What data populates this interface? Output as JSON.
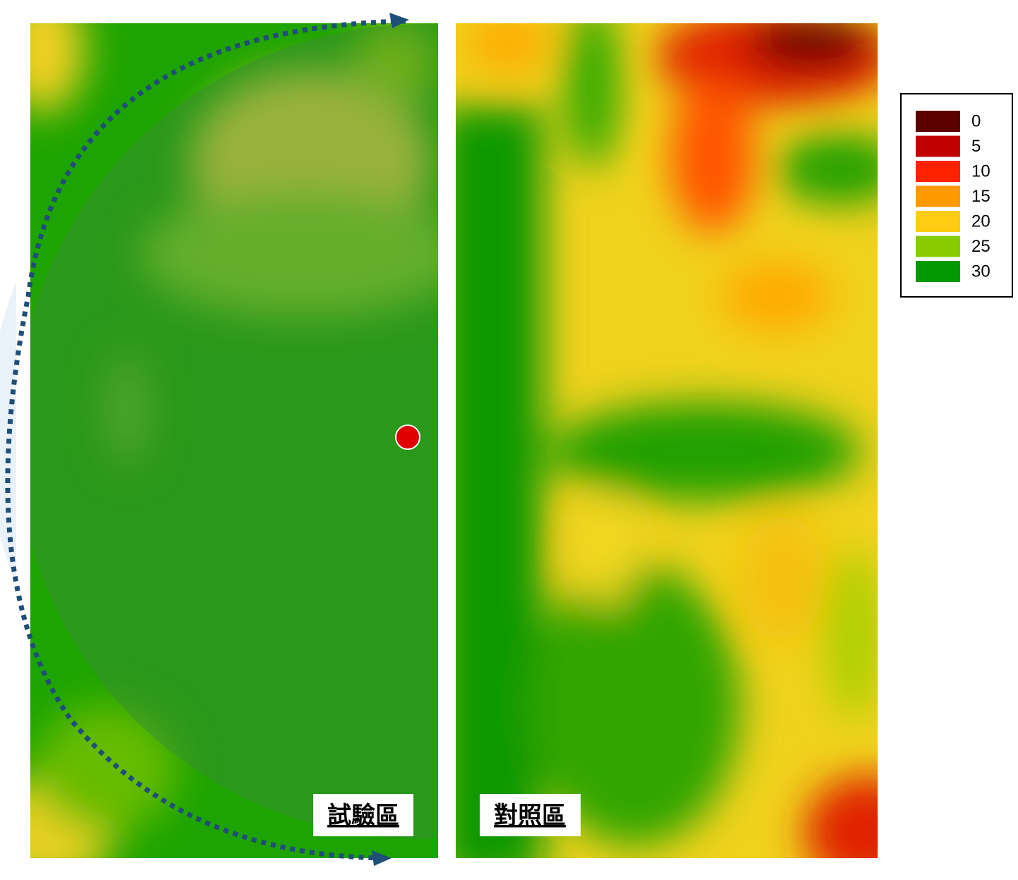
{
  "panels": [
    {
      "label": "試驗區"
    },
    {
      "label": "對照區"
    }
  ],
  "legend": {
    "items": [
      {
        "value": 0,
        "color": "#5c0000"
      },
      {
        "value": 5,
        "color": "#c00000"
      },
      {
        "value": 10,
        "color": "#ff2200"
      },
      {
        "value": 15,
        "color": "#ff9900"
      },
      {
        "value": 20,
        "color": "#ffcc11"
      },
      {
        "value": 25,
        "color": "#88cc00"
      },
      {
        "value": 30,
        "color": "#009900"
      }
    ]
  }
}
